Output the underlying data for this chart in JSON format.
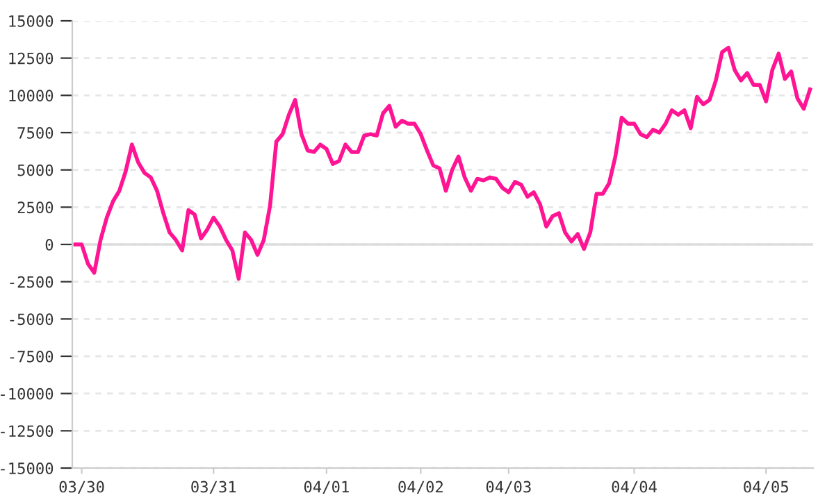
{
  "chart_data": {
    "type": "line",
    "categories": [
      null,
      "03/30",
      null,
      null,
      null,
      null,
      null,
      null,
      null,
      null,
      null,
      null,
      null,
      null,
      null,
      null,
      null,
      null,
      null,
      null,
      null,
      null,
      "03/31",
      null,
      null,
      null,
      null,
      null,
      null,
      null,
      null,
      null,
      null,
      null,
      null,
      null,
      null,
      null,
      null,
      null,
      "04/01",
      null,
      null,
      null,
      null,
      null,
      null,
      null,
      null,
      null,
      null,
      null,
      null,
      null,
      null,
      "04/02",
      null,
      null,
      null,
      null,
      null,
      null,
      null,
      null,
      null,
      null,
      null,
      null,
      null,
      "04/03",
      null,
      null,
      null,
      null,
      null,
      null,
      null,
      null,
      null,
      null,
      null,
      null,
      null,
      null,
      null,
      null,
      null,
      null,
      null,
      "04/04",
      null,
      null,
      null,
      null,
      null,
      null,
      null,
      null,
      null,
      null,
      null,
      null,
      null,
      null,
      null,
      null,
      null,
      null,
      null,
      null,
      "04/05",
      null,
      null,
      null,
      null,
      null,
      null,
      null
    ],
    "series": [
      {
        "color": "#ff1493",
        "values": [
          0,
          0,
          -1300,
          -1900,
          300,
          1800,
          2900,
          3600,
          4900,
          6700,
          5500,
          4800,
          4500,
          3600,
          2100,
          800,
          300,
          -400,
          2300,
          2000,
          400,
          1000,
          1800,
          1200,
          300,
          -400,
          -2300,
          800,
          300,
          -700,
          300,
          2600,
          6900,
          7400,
          8700,
          9700,
          7400,
          6300,
          6200,
          6700,
          6400,
          5400,
          5600,
          6700,
          6200,
          6200,
          7300,
          7400,
          7300,
          8800,
          9300,
          7900,
          8300,
          8100,
          8100,
          7400,
          6300,
          5300,
          5100,
          3600,
          5000,
          5900,
          4500,
          3600,
          4400,
          4300,
          4500,
          4400,
          3800,
          3500,
          4200,
          4000,
          3200,
          3500,
          2700,
          1200,
          1900,
          2100,
          800,
          200,
          700,
          -300,
          800,
          3400,
          3400,
          4100,
          5900,
          8500,
          8100,
          8100,
          7400,
          7200,
          7700,
          7500,
          8100,
          9000,
          8700,
          9000,
          7800,
          9900,
          9400,
          9700,
          11000,
          12900,
          13200,
          11700,
          11000,
          11500,
          10700,
          10700,
          9600,
          11700,
          12800,
          11100,
          11600,
          9800,
          9100,
          10400
        ]
      }
    ],
    "ylim": [
      -15000,
      15000
    ],
    "yticks": [
      -15000,
      -12500,
      -10000,
      -7500,
      -5000,
      -2500,
      0,
      2500,
      5000,
      7500,
      10000,
      12500,
      15000
    ],
    "grid": "y",
    "ref_lines": [
      {
        "axis": "y",
        "value": 0,
        "color": "#dddddd",
        "line_style": "solid"
      }
    ]
  }
}
